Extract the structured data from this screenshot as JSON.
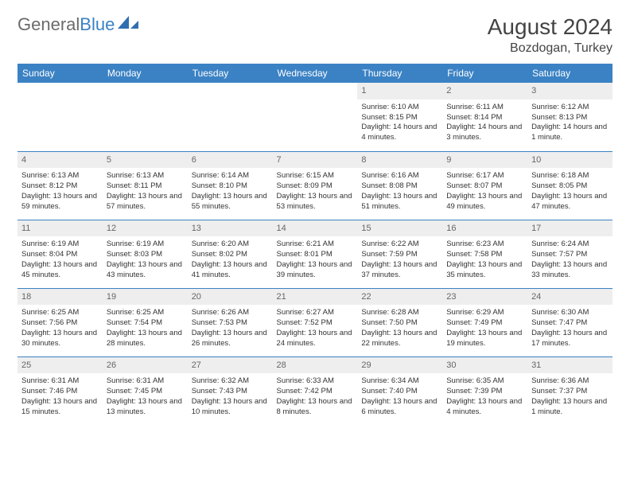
{
  "logo": {
    "text_a": "General",
    "text_b": "Blue"
  },
  "title": "August 2024",
  "location": "Bozdogan, Turkey",
  "colors": {
    "header_bg": "#3b82c4",
    "header_text": "#ffffff",
    "daynum_bg": "#eeeeee",
    "daynum_text": "#666666",
    "row_border": "#3b82c4",
    "body_text": "#333333"
  },
  "typography": {
    "title_fontsize": 28,
    "location_fontsize": 16,
    "dayheader_fontsize": 12,
    "cell_fontsize": 9.5
  },
  "day_headers": [
    "Sunday",
    "Monday",
    "Tuesday",
    "Wednesday",
    "Thursday",
    "Friday",
    "Saturday"
  ],
  "weeks": [
    [
      {
        "n": "",
        "sr": "",
        "ss": "",
        "dl": "",
        "empty": true
      },
      {
        "n": "",
        "sr": "",
        "ss": "",
        "dl": "",
        "empty": true
      },
      {
        "n": "",
        "sr": "",
        "ss": "",
        "dl": "",
        "empty": true
      },
      {
        "n": "",
        "sr": "",
        "ss": "",
        "dl": "",
        "empty": true
      },
      {
        "n": "1",
        "sr": "Sunrise: 6:10 AM",
        "ss": "Sunset: 8:15 PM",
        "dl": "Daylight: 14 hours and 4 minutes."
      },
      {
        "n": "2",
        "sr": "Sunrise: 6:11 AM",
        "ss": "Sunset: 8:14 PM",
        "dl": "Daylight: 14 hours and 3 minutes."
      },
      {
        "n": "3",
        "sr": "Sunrise: 6:12 AM",
        "ss": "Sunset: 8:13 PM",
        "dl": "Daylight: 14 hours and 1 minute."
      }
    ],
    [
      {
        "n": "4",
        "sr": "Sunrise: 6:13 AM",
        "ss": "Sunset: 8:12 PM",
        "dl": "Daylight: 13 hours and 59 minutes."
      },
      {
        "n": "5",
        "sr": "Sunrise: 6:13 AM",
        "ss": "Sunset: 8:11 PM",
        "dl": "Daylight: 13 hours and 57 minutes."
      },
      {
        "n": "6",
        "sr": "Sunrise: 6:14 AM",
        "ss": "Sunset: 8:10 PM",
        "dl": "Daylight: 13 hours and 55 minutes."
      },
      {
        "n": "7",
        "sr": "Sunrise: 6:15 AM",
        "ss": "Sunset: 8:09 PM",
        "dl": "Daylight: 13 hours and 53 minutes."
      },
      {
        "n": "8",
        "sr": "Sunrise: 6:16 AM",
        "ss": "Sunset: 8:08 PM",
        "dl": "Daylight: 13 hours and 51 minutes."
      },
      {
        "n": "9",
        "sr": "Sunrise: 6:17 AM",
        "ss": "Sunset: 8:07 PM",
        "dl": "Daylight: 13 hours and 49 minutes."
      },
      {
        "n": "10",
        "sr": "Sunrise: 6:18 AM",
        "ss": "Sunset: 8:05 PM",
        "dl": "Daylight: 13 hours and 47 minutes."
      }
    ],
    [
      {
        "n": "11",
        "sr": "Sunrise: 6:19 AM",
        "ss": "Sunset: 8:04 PM",
        "dl": "Daylight: 13 hours and 45 minutes."
      },
      {
        "n": "12",
        "sr": "Sunrise: 6:19 AM",
        "ss": "Sunset: 8:03 PM",
        "dl": "Daylight: 13 hours and 43 minutes."
      },
      {
        "n": "13",
        "sr": "Sunrise: 6:20 AM",
        "ss": "Sunset: 8:02 PM",
        "dl": "Daylight: 13 hours and 41 minutes."
      },
      {
        "n": "14",
        "sr": "Sunrise: 6:21 AM",
        "ss": "Sunset: 8:01 PM",
        "dl": "Daylight: 13 hours and 39 minutes."
      },
      {
        "n": "15",
        "sr": "Sunrise: 6:22 AM",
        "ss": "Sunset: 7:59 PM",
        "dl": "Daylight: 13 hours and 37 minutes."
      },
      {
        "n": "16",
        "sr": "Sunrise: 6:23 AM",
        "ss": "Sunset: 7:58 PM",
        "dl": "Daylight: 13 hours and 35 minutes."
      },
      {
        "n": "17",
        "sr": "Sunrise: 6:24 AM",
        "ss": "Sunset: 7:57 PM",
        "dl": "Daylight: 13 hours and 33 minutes."
      }
    ],
    [
      {
        "n": "18",
        "sr": "Sunrise: 6:25 AM",
        "ss": "Sunset: 7:56 PM",
        "dl": "Daylight: 13 hours and 30 minutes."
      },
      {
        "n": "19",
        "sr": "Sunrise: 6:25 AM",
        "ss": "Sunset: 7:54 PM",
        "dl": "Daylight: 13 hours and 28 minutes."
      },
      {
        "n": "20",
        "sr": "Sunrise: 6:26 AM",
        "ss": "Sunset: 7:53 PM",
        "dl": "Daylight: 13 hours and 26 minutes."
      },
      {
        "n": "21",
        "sr": "Sunrise: 6:27 AM",
        "ss": "Sunset: 7:52 PM",
        "dl": "Daylight: 13 hours and 24 minutes."
      },
      {
        "n": "22",
        "sr": "Sunrise: 6:28 AM",
        "ss": "Sunset: 7:50 PM",
        "dl": "Daylight: 13 hours and 22 minutes."
      },
      {
        "n": "23",
        "sr": "Sunrise: 6:29 AM",
        "ss": "Sunset: 7:49 PM",
        "dl": "Daylight: 13 hours and 19 minutes."
      },
      {
        "n": "24",
        "sr": "Sunrise: 6:30 AM",
        "ss": "Sunset: 7:47 PM",
        "dl": "Daylight: 13 hours and 17 minutes."
      }
    ],
    [
      {
        "n": "25",
        "sr": "Sunrise: 6:31 AM",
        "ss": "Sunset: 7:46 PM",
        "dl": "Daylight: 13 hours and 15 minutes."
      },
      {
        "n": "26",
        "sr": "Sunrise: 6:31 AM",
        "ss": "Sunset: 7:45 PM",
        "dl": "Daylight: 13 hours and 13 minutes."
      },
      {
        "n": "27",
        "sr": "Sunrise: 6:32 AM",
        "ss": "Sunset: 7:43 PM",
        "dl": "Daylight: 13 hours and 10 minutes."
      },
      {
        "n": "28",
        "sr": "Sunrise: 6:33 AM",
        "ss": "Sunset: 7:42 PM",
        "dl": "Daylight: 13 hours and 8 minutes."
      },
      {
        "n": "29",
        "sr": "Sunrise: 6:34 AM",
        "ss": "Sunset: 7:40 PM",
        "dl": "Daylight: 13 hours and 6 minutes."
      },
      {
        "n": "30",
        "sr": "Sunrise: 6:35 AM",
        "ss": "Sunset: 7:39 PM",
        "dl": "Daylight: 13 hours and 4 minutes."
      },
      {
        "n": "31",
        "sr": "Sunrise: 6:36 AM",
        "ss": "Sunset: 7:37 PM",
        "dl": "Daylight: 13 hours and 1 minute."
      }
    ]
  ]
}
